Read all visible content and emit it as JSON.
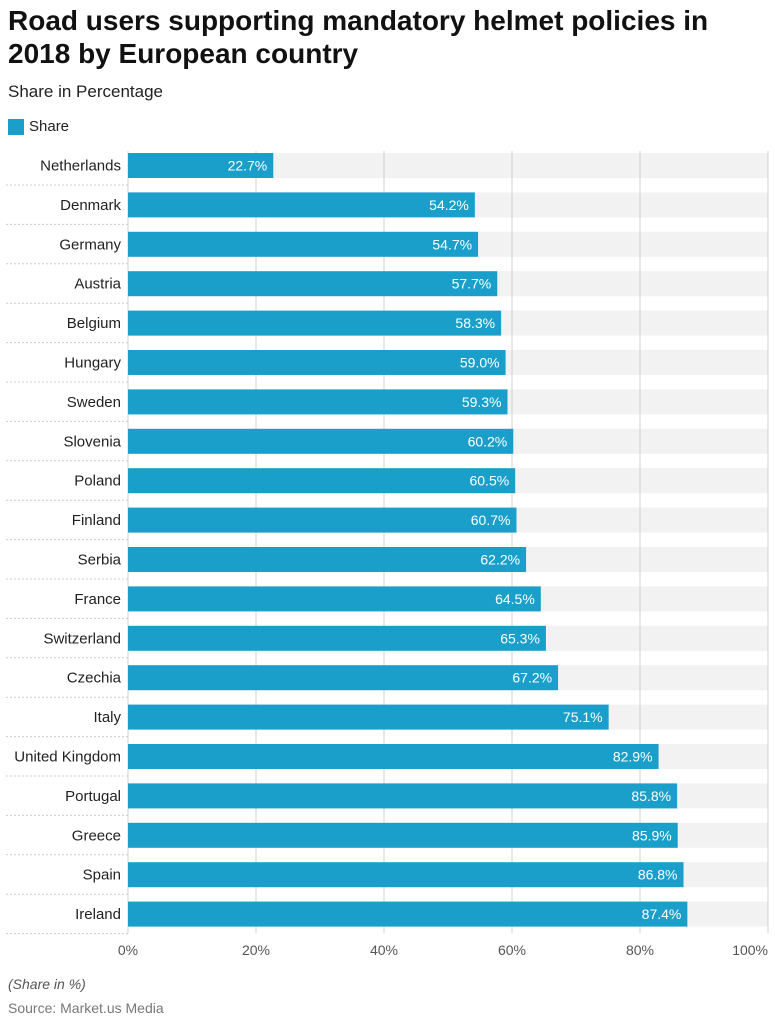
{
  "header": {
    "title": "Road users supporting mandatory helmet policies in 2018 by European country",
    "subtitle": "Share in Percentage"
  },
  "legend": {
    "label": "Share",
    "color": "#1a9fcb"
  },
  "footer": {
    "note": "(Share in %)",
    "source": "Source: Market.us Media"
  },
  "chart_data": {
    "type": "bar",
    "orientation": "horizontal",
    "title": "Road users supporting mandatory helmet policies in 2018 by European country",
    "subtitle": "Share in Percentage",
    "xlabel": "",
    "ylabel": "",
    "xlim": [
      0,
      100
    ],
    "ticks": [
      0,
      20,
      40,
      60,
      80,
      100
    ],
    "tick_suffix": "%",
    "value_suffix": "%",
    "bar_color": "#1a9fcb",
    "track_color": "#f2f2f2",
    "categories": [
      "Netherlands",
      "Denmark",
      "Germany",
      "Austria",
      "Belgium",
      "Hungary",
      "Sweden",
      "Slovenia",
      "Poland",
      "Finland",
      "Serbia",
      "France",
      "Switzerland",
      "Czechia",
      "Italy",
      "United Kingdom",
      "Portugal",
      "Greece",
      "Spain",
      "Ireland"
    ],
    "series": [
      {
        "name": "Share",
        "values": [
          22.7,
          54.2,
          54.7,
          57.7,
          58.3,
          59.0,
          59.3,
          60.2,
          60.5,
          60.7,
          62.2,
          64.5,
          65.3,
          67.2,
          75.1,
          82.9,
          85.8,
          85.9,
          86.8,
          87.4
        ]
      }
    ]
  }
}
